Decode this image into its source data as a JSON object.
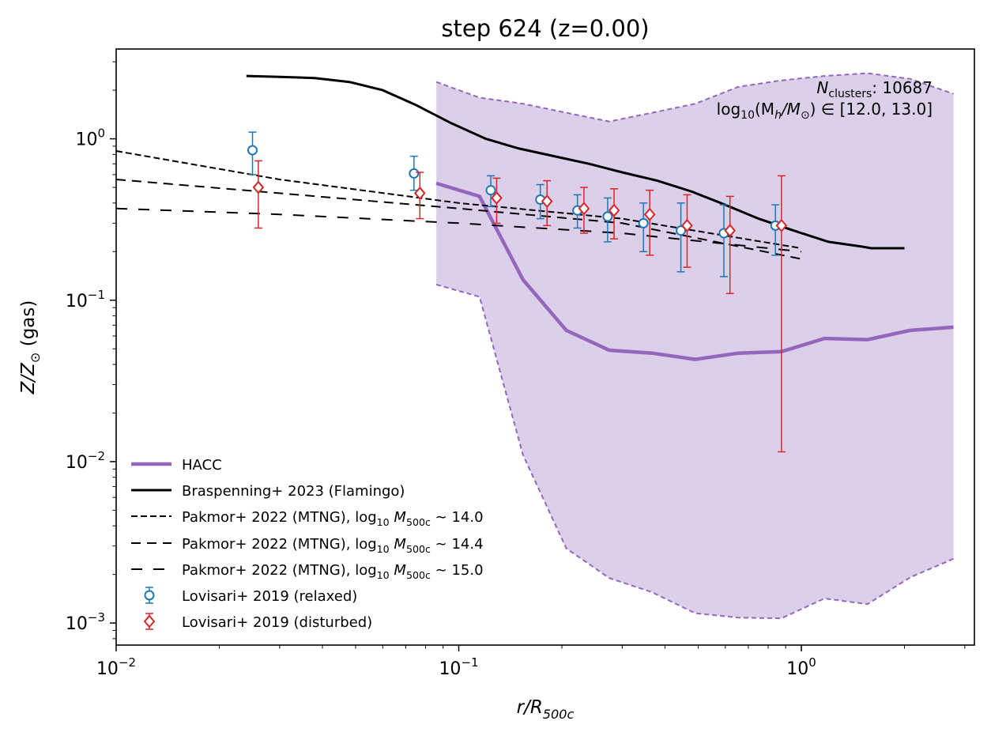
{
  "chart_data": {
    "type": "line",
    "title": "step 624 (z=0.00)",
    "xlabel": {
      "main": "r/R",
      "sub": "500c"
    },
    "ylabel": {
      "pre": "Z/Z",
      "sub": "⊙",
      "post": " (gas)"
    },
    "xscale": "log",
    "yscale": "log",
    "xlim": [
      0.01,
      3.2
    ],
    "ylim": [
      0.00073,
      3.6
    ],
    "x_ticks": [
      {
        "value": 0.01,
        "base": "10",
        "exp": "−2"
      },
      {
        "value": 0.1,
        "base": "10",
        "exp": "−1"
      },
      {
        "value": 1,
        "base": "10",
        "exp": "0"
      }
    ],
    "y_ticks": [
      {
        "value": 0.001,
        "base": "10",
        "exp": "−3"
      },
      {
        "value": 0.01,
        "base": "10",
        "exp": "−2"
      },
      {
        "value": 0.1,
        "base": "10",
        "exp": "−1"
      },
      {
        "value": 1,
        "base": "10",
        "exp": "0"
      }
    ],
    "annotation": {
      "line1_sym": "N",
      "line1_sub": "clusters",
      "line1_val": ": 10687",
      "line2_log": "log",
      "line2_sub": "10",
      "line2_rest": "(M",
      "line2_h": "h",
      "line2_mid": "/M",
      "line2_sun": "⊙",
      "line2_end": ") ∈ [12.0, 13.0]"
    },
    "legend_position": "lower-left",
    "legend": [
      {
        "key": "hacc",
        "label": "HACC"
      },
      {
        "key": "flamingo",
        "label": "Braspenning+ 2023 (Flamingo)"
      },
      {
        "key": "mtng140",
        "label": "Pakmor+ 2022 (MTNG), log",
        "sub": "10",
        "mid": " M",
        "sub2": "500c",
        "end": " ∼ 14.0"
      },
      {
        "key": "mtng144",
        "label": "Pakmor+ 2022 (MTNG), log",
        "sub": "10",
        "mid": " M",
        "sub2": "500c",
        "end": " ∼ 14.4"
      },
      {
        "key": "mtng150",
        "label": "Pakmor+ 2022 (MTNG), log",
        "sub": "10",
        "mid": " M",
        "sub2": "500c",
        "end": " ∼ 15.0"
      },
      {
        "key": "relaxed",
        "label": "Lovisari+ 2019 (relaxed)"
      },
      {
        "key": "disturbed",
        "label": "Lovisari+ 2019 (disturbed)"
      }
    ],
    "colors": {
      "hacc": "#9467bd",
      "band_fill": "#dccfea",
      "flamingo": "#000000",
      "mtng": "#000000",
      "relaxed": "#1f77b4",
      "disturbed": "#d62728"
    },
    "hacc": {
      "x": [
        0.086,
        0.115,
        0.154,
        0.206,
        0.275,
        0.367,
        0.49,
        0.655,
        0.875,
        1.168,
        1.56,
        2.08,
        2.78
      ],
      "median": [
        0.53,
        0.44,
        0.134,
        0.065,
        0.049,
        0.047,
        0.043,
        0.047,
        0.048,
        0.058,
        0.057,
        0.065,
        0.068
      ],
      "upper": [
        2.25,
        1.8,
        1.65,
        1.45,
        1.28,
        1.45,
        1.65,
        2.1,
        2.3,
        2.45,
        2.55,
        2.35,
        1.9
      ],
      "lower": [
        0.125,
        0.105,
        0.011,
        0.0029,
        0.0019,
        0.00155,
        0.00115,
        0.00108,
        0.00107,
        0.00142,
        0.00131,
        0.00192,
        0.0025
      ]
    },
    "flamingo": {
      "x": [
        0.024,
        0.03,
        0.038,
        0.048,
        0.06,
        0.075,
        0.095,
        0.12,
        0.15,
        0.19,
        0.24,
        0.3,
        0.38,
        0.48,
        0.6,
        0.75,
        0.95,
        1.2,
        1.5,
        1.6,
        2.0
      ],
      "y": [
        2.45,
        2.42,
        2.38,
        2.25,
        2.0,
        1.62,
        1.25,
        1.0,
        0.87,
        0.78,
        0.7,
        0.62,
        0.55,
        0.47,
        0.39,
        0.32,
        0.27,
        0.23,
        0.215,
        0.21,
        0.21
      ]
    },
    "mtng": [
      {
        "key": "mtng140",
        "x": [
          0.01,
          0.03,
          0.1,
          0.3,
          1.0
        ],
        "y": [
          0.84,
          0.56,
          0.4,
          0.32,
          0.21
        ]
      },
      {
        "key": "mtng144",
        "x": [
          0.01,
          0.03,
          0.1,
          0.3,
          1.0
        ],
        "y": [
          0.56,
          0.46,
          0.37,
          0.3,
          0.18
        ]
      },
      {
        "key": "mtng150",
        "x": [
          0.01,
          0.03,
          0.1,
          0.3,
          1.0
        ],
        "y": [
          0.37,
          0.34,
          0.3,
          0.26,
          0.2
        ]
      }
    ],
    "relaxed": {
      "x": [
        0.025,
        0.074,
        0.124,
        0.173,
        0.222,
        0.272,
        0.346,
        0.445,
        0.594,
        0.84
      ],
      "y": [
        0.85,
        0.61,
        0.48,
        0.42,
        0.36,
        0.33,
        0.3,
        0.27,
        0.26,
        0.29
      ],
      "lo": [
        0.6,
        0.48,
        0.38,
        0.32,
        0.28,
        0.23,
        0.2,
        0.15,
        0.14,
        0.19
      ],
      "hi": [
        1.1,
        0.78,
        0.59,
        0.52,
        0.45,
        0.43,
        0.4,
        0.4,
        0.39,
        0.39
      ]
    },
    "disturbed": {
      "x": [
        0.026,
        0.077,
        0.129,
        0.181,
        0.232,
        0.284,
        0.361,
        0.464,
        0.619,
        0.875
      ],
      "y": [
        0.5,
        0.46,
        0.43,
        0.41,
        0.37,
        0.36,
        0.34,
        0.29,
        0.27,
        0.29
      ],
      "lo": [
        0.28,
        0.32,
        0.3,
        0.29,
        0.26,
        0.24,
        0.19,
        0.16,
        0.11,
        0.0115
      ],
      "hi": [
        0.73,
        0.62,
        0.57,
        0.55,
        0.5,
        0.49,
        0.48,
        0.45,
        0.44,
        0.59
      ]
    }
  }
}
